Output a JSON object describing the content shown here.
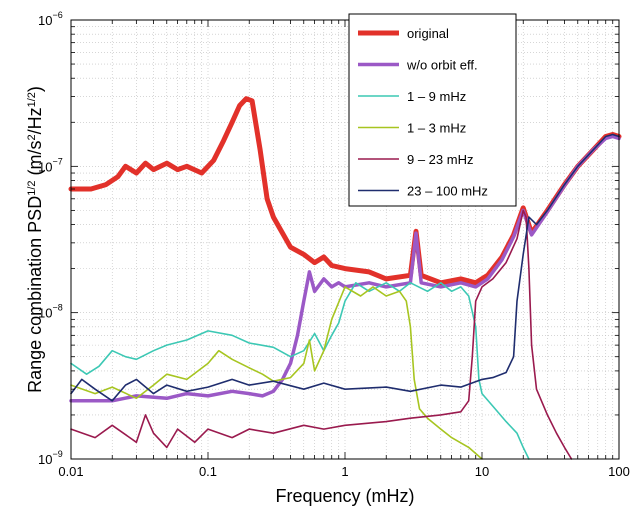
{
  "chart_data": {
    "type": "line",
    "xlabel": "Frequency (mHz)",
    "ylabel": {
      "text": "Range combination PSD",
      "sup1": "1/2",
      "units": " (m/s",
      "sup2": "2",
      "units2": "/Hz",
      "sup3": "1/2",
      "units3": ")"
    },
    "xscale": "log",
    "yscale": "log",
    "xlim": [
      0.01,
      100
    ],
    "ylim": [
      1e-09,
      1e-06
    ],
    "grid": true,
    "legend_position": "top-right",
    "x_ticks": [
      {
        "value": 0.01,
        "label": "0.01"
      },
      {
        "value": 0.1,
        "label": "0.1"
      },
      {
        "value": 1,
        "label": "1"
      },
      {
        "value": 10,
        "label": "10"
      },
      {
        "value": 100,
        "label": "100"
      }
    ],
    "y_ticks": [
      {
        "value": 1e-09,
        "base": "10",
        "exp": "−9"
      },
      {
        "value": 1e-08,
        "base": "10",
        "exp": "−8"
      },
      {
        "value": 1e-07,
        "base": "10",
        "exp": "−7"
      },
      {
        "value": 1e-06,
        "base": "10",
        "exp": "−6"
      }
    ],
    "series": [
      {
        "name": "original",
        "color": "#e2312a",
        "width": 5,
        "points": [
          [
            0.01,
            7e-08
          ],
          [
            0.014,
            7e-08
          ],
          [
            0.018,
            7.5e-08
          ],
          [
            0.022,
            8.5e-08
          ],
          [
            0.025,
            1e-07
          ],
          [
            0.03,
            9e-08
          ],
          [
            0.035,
            1.05e-07
          ],
          [
            0.04,
            9.5e-08
          ],
          [
            0.05,
            1.05e-07
          ],
          [
            0.06,
            9.5e-08
          ],
          [
            0.07,
            1e-07
          ],
          [
            0.09,
            9e-08
          ],
          [
            0.11,
            1.1e-07
          ],
          [
            0.13,
            1.5e-07
          ],
          [
            0.15,
            2e-07
          ],
          [
            0.17,
            2.6e-07
          ],
          [
            0.19,
            2.9e-07
          ],
          [
            0.21,
            2.8e-07
          ],
          [
            0.24,
            1.3e-07
          ],
          [
            0.27,
            6e-08
          ],
          [
            0.3,
            4.5e-08
          ],
          [
            0.35,
            3.5e-08
          ],
          [
            0.4,
            2.8e-08
          ],
          [
            0.5,
            2.5e-08
          ],
          [
            0.6,
            2.2e-08
          ],
          [
            0.7,
            2.4e-08
          ],
          [
            0.8,
            2.1e-08
          ],
          [
            1,
            2e-08
          ],
          [
            1.5,
            1.9e-08
          ],
          [
            2,
            1.7e-08
          ],
          [
            3,
            1.8e-08
          ],
          [
            3.3,
            3.6e-08
          ],
          [
            3.6,
            1.8e-08
          ],
          [
            5,
            1.6e-08
          ],
          [
            7,
            1.7e-08
          ],
          [
            9,
            1.6e-08
          ],
          [
            11,
            1.8e-08
          ],
          [
            14,
            2.4e-08
          ],
          [
            17,
            3.4e-08
          ],
          [
            20,
            5.2e-08
          ],
          [
            23,
            3.5e-08
          ],
          [
            30,
            5e-08
          ],
          [
            40,
            7.5e-08
          ],
          [
            50,
            1e-07
          ],
          [
            65,
            1.3e-07
          ],
          [
            80,
            1.6e-07
          ],
          [
            90,
            1.65e-07
          ],
          [
            100,
            1.6e-07
          ]
        ]
      },
      {
        "name": "w/o orbit eff.",
        "color": "#9b59c6",
        "width": 3.5,
        "points": [
          [
            0.01,
            2.5e-09
          ],
          [
            0.02,
            2.5e-09
          ],
          [
            0.03,
            2.7e-09
          ],
          [
            0.05,
            2.6e-09
          ],
          [
            0.07,
            2.8e-09
          ],
          [
            0.1,
            2.7e-09
          ],
          [
            0.15,
            2.9e-09
          ],
          [
            0.2,
            2.8e-09
          ],
          [
            0.25,
            2.7e-09
          ],
          [
            0.3,
            2.9e-09
          ],
          [
            0.35,
            3.5e-09
          ],
          [
            0.4,
            4.5e-09
          ],
          [
            0.45,
            7e-09
          ],
          [
            0.5,
            1.2e-08
          ],
          [
            0.55,
            1.9e-08
          ],
          [
            0.6,
            1.4e-08
          ],
          [
            0.7,
            1.7e-08
          ],
          [
            0.8,
            1.5e-08
          ],
          [
            0.9,
            1.6e-08
          ],
          [
            1,
            1.5e-08
          ],
          [
            1.5,
            1.6e-08
          ],
          [
            2,
            1.5e-08
          ],
          [
            3,
            1.6e-08
          ],
          [
            3.3,
            3.5e-08
          ],
          [
            3.6,
            1.6e-08
          ],
          [
            5,
            1.5e-08
          ],
          [
            7,
            1.6e-08
          ],
          [
            9,
            1.5e-08
          ],
          [
            11,
            1.7e-08
          ],
          [
            14,
            2.3e-08
          ],
          [
            17,
            3.3e-08
          ],
          [
            20,
            5e-08
          ],
          [
            23,
            3.4e-08
          ],
          [
            30,
            4.9e-08
          ],
          [
            40,
            7.4e-08
          ],
          [
            50,
            1e-07
          ],
          [
            65,
            1.3e-07
          ],
          [
            80,
            1.55e-07
          ],
          [
            90,
            1.6e-07
          ],
          [
            100,
            1.55e-07
          ]
        ]
      },
      {
        "name": "1 – 9 mHz",
        "color": "#3cc8b4",
        "width": 1.6,
        "points": [
          [
            0.01,
            4.5e-09
          ],
          [
            0.013,
            3.8e-09
          ],
          [
            0.016,
            4.3e-09
          ],
          [
            0.02,
            5.5e-09
          ],
          [
            0.025,
            5e-09
          ],
          [
            0.03,
            4.8e-09
          ],
          [
            0.04,
            5.5e-09
          ],
          [
            0.05,
            6e-09
          ],
          [
            0.07,
            6.5e-09
          ],
          [
            0.1,
            7.5e-09
          ],
          [
            0.15,
            7e-09
          ],
          [
            0.2,
            6.2e-09
          ],
          [
            0.3,
            5.8e-09
          ],
          [
            0.4,
            5e-09
          ],
          [
            0.5,
            5.5e-09
          ],
          [
            0.6,
            7.2e-09
          ],
          [
            0.7,
            5.5e-09
          ],
          [
            0.8,
            7e-09
          ],
          [
            0.9,
            8.5e-09
          ],
          [
            1,
            1.2e-08
          ],
          [
            1.2,
            1.6e-08
          ],
          [
            1.5,
            1.4e-08
          ],
          [
            2,
            1.6e-08
          ],
          [
            2.5,
            1.4e-08
          ],
          [
            3,
            1.6e-08
          ],
          [
            4,
            1.4e-08
          ],
          [
            5,
            1.6e-08
          ],
          [
            6,
            1.4e-08
          ],
          [
            7,
            1.5e-08
          ],
          [
            8,
            1.3e-08
          ],
          [
            9,
            8e-09
          ],
          [
            9.5,
            3.5e-09
          ],
          [
            10,
            2.8e-09
          ],
          [
            12,
            2.3e-09
          ],
          [
            15,
            1.8e-09
          ],
          [
            18,
            1.5e-09
          ],
          [
            20,
            1.2e-09
          ],
          [
            22,
            1e-09
          ]
        ]
      },
      {
        "name": "1 – 3 mHz",
        "color": "#a7c520",
        "width": 1.6,
        "points": [
          [
            0.01,
            3.2e-09
          ],
          [
            0.015,
            2.8e-09
          ],
          [
            0.02,
            3.1e-09
          ],
          [
            0.03,
            2.6e-09
          ],
          [
            0.04,
            3.2e-09
          ],
          [
            0.05,
            3.8e-09
          ],
          [
            0.07,
            3.5e-09
          ],
          [
            0.1,
            4.5e-09
          ],
          [
            0.12,
            5.5e-09
          ],
          [
            0.15,
            4.8e-09
          ],
          [
            0.2,
            4.2e-09
          ],
          [
            0.25,
            3.8e-09
          ],
          [
            0.3,
            3.4e-09
          ],
          [
            0.4,
            3.6e-09
          ],
          [
            0.5,
            4.5e-09
          ],
          [
            0.55,
            6.5e-09
          ],
          [
            0.6,
            4e-09
          ],
          [
            0.7,
            5.5e-09
          ],
          [
            0.8,
            9e-09
          ],
          [
            1,
            1.5e-08
          ],
          [
            1.3,
            1.3e-08
          ],
          [
            1.6,
            1.5e-08
          ],
          [
            2,
            1.3e-08
          ],
          [
            2.5,
            1.4e-08
          ],
          [
            2.8,
            1.2e-08
          ],
          [
            3,
            8e-09
          ],
          [
            3.2,
            3.5e-09
          ],
          [
            3.5,
            2.2e-09
          ],
          [
            4,
            1.9e-09
          ],
          [
            5,
            1.6e-09
          ],
          [
            6,
            1.4e-09
          ],
          [
            8,
            1.2e-09
          ],
          [
            10,
            1e-09
          ]
        ]
      },
      {
        "name": "9 – 23 mHz",
        "color": "#9a1a4e",
        "width": 1.6,
        "points": [
          [
            0.01,
            1.6e-09
          ],
          [
            0.015,
            1.4e-09
          ],
          [
            0.02,
            1.7e-09
          ],
          [
            0.03,
            1.3e-09
          ],
          [
            0.035,
            2e-09
          ],
          [
            0.04,
            1.5e-09
          ],
          [
            0.05,
            1.2e-09
          ],
          [
            0.06,
            1.6e-09
          ],
          [
            0.08,
            1.3e-09
          ],
          [
            0.1,
            1.6e-09
          ],
          [
            0.15,
            1.4e-09
          ],
          [
            0.2,
            1.6e-09
          ],
          [
            0.3,
            1.5e-09
          ],
          [
            0.5,
            1.7e-09
          ],
          [
            0.7,
            1.6e-09
          ],
          [
            1,
            1.7e-09
          ],
          [
            2,
            1.8e-09
          ],
          [
            3,
            1.9e-09
          ],
          [
            5,
            2e-09
          ],
          [
            7,
            2.1e-09
          ],
          [
            8,
            2.5e-09
          ],
          [
            8.5,
            5e-09
          ],
          [
            9,
            1.2e-08
          ],
          [
            10,
            1.5e-08
          ],
          [
            12,
            1.7e-08
          ],
          [
            15,
            2.2e-08
          ],
          [
            18,
            3.2e-08
          ],
          [
            20,
            5e-08
          ],
          [
            21,
            4.5e-08
          ],
          [
            22,
            2e-08
          ],
          [
            23,
            6e-09
          ],
          [
            25,
            3e-09
          ],
          [
            30,
            2e-09
          ],
          [
            35,
            1.5e-09
          ],
          [
            40,
            1.2e-09
          ],
          [
            45,
            1e-09
          ]
        ]
      },
      {
        "name": "23 – 100 mHz",
        "color": "#1f2d6e",
        "width": 1.6,
        "points": [
          [
            0.01,
            2.8e-09
          ],
          [
            0.012,
            3.5e-09
          ],
          [
            0.015,
            3e-09
          ],
          [
            0.02,
            2.5e-09
          ],
          [
            0.025,
            3.2e-09
          ],
          [
            0.03,
            3.5e-09
          ],
          [
            0.04,
            2.8e-09
          ],
          [
            0.05,
            3.2e-09
          ],
          [
            0.07,
            2.9e-09
          ],
          [
            0.1,
            3.1e-09
          ],
          [
            0.15,
            3.5e-09
          ],
          [
            0.2,
            3.2e-09
          ],
          [
            0.3,
            3.4e-09
          ],
          [
            0.5,
            3e-09
          ],
          [
            0.7,
            3.3e-09
          ],
          [
            1,
            3e-09
          ],
          [
            2,
            3.1e-09
          ],
          [
            3,
            2.9e-09
          ],
          [
            5,
            3.2e-09
          ],
          [
            7,
            3.1e-09
          ],
          [
            10,
            3.5e-09
          ],
          [
            12,
            3.6e-09
          ],
          [
            15,
            3.9e-09
          ],
          [
            17,
            5e-09
          ],
          [
            18,
            1.2e-08
          ],
          [
            20,
            2.5e-08
          ],
          [
            22,
            4.5e-08
          ],
          [
            25,
            4e-08
          ],
          [
            30,
            5e-08
          ],
          [
            40,
            7.5e-08
          ],
          [
            50,
            1e-07
          ],
          [
            65,
            1.3e-07
          ],
          [
            80,
            1.6e-07
          ],
          [
            90,
            1.65e-07
          ],
          [
            100,
            1.6e-07
          ]
        ]
      }
    ]
  }
}
